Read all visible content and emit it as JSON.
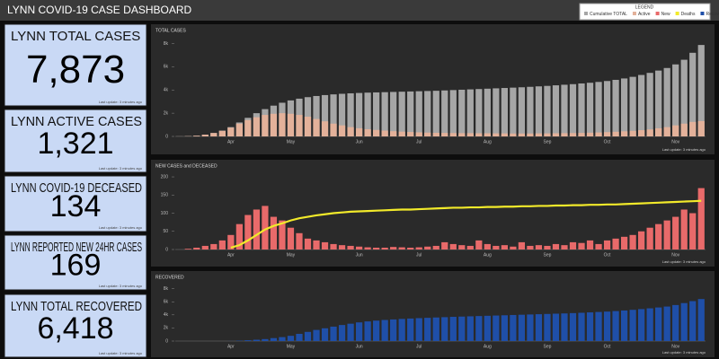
{
  "header": {
    "title": "LYNN COVID-19 CASE DASHBOARD"
  },
  "legend": {
    "title": "LEGEND"
  },
  "cards": [
    {
      "label": "LYNN TOTAL CASES",
      "value": "7,873",
      "note": "Last update: 3 minutes ago"
    },
    {
      "label": "LYNN ACTIVE CASES",
      "value": "1,321",
      "note": "Last update: 3 minutes ago"
    },
    {
      "label": "LYNN COVID-19 DECEASED",
      "value": "134",
      "note": "Last update: 3 minutes ago"
    },
    {
      "label": "LYNN REPORTED NEW 24HR CASES",
      "value": "169",
      "note": "Last update: 3 minutes ago"
    },
    {
      "label": "LYNN TOTAL RECOVERED",
      "value": "6,418",
      "note": "Last update: 3 minutes ago"
    }
  ],
  "chart_data": [
    {
      "type": "bar",
      "title": "TOTAL CASES",
      "note": "Last update: 3 minutes ago",
      "categories": [
        null,
        null,
        null,
        null,
        null,
        null,
        "Apr",
        null,
        null,
        null,
        null,
        null,
        null,
        "May",
        null,
        null,
        null,
        null,
        null,
        null,
        null,
        "Jun",
        null,
        null,
        null,
        null,
        null,
        null,
        "Jul",
        null,
        null,
        null,
        null,
        null,
        null,
        null,
        "Aug",
        null,
        null,
        null,
        null,
        null,
        null,
        "Sep",
        null,
        null,
        null,
        null,
        null,
        null,
        "Oct",
        null,
        null,
        null,
        null,
        null,
        null,
        null,
        "Nov",
        null,
        null,
        null
      ],
      "ylim": [
        0,
        8500
      ],
      "yticks": [
        0,
        {
          "value": 2000,
          "label": "2k"
        },
        {
          "value": 4000,
          "label": "4k"
        },
        {
          "value": 6000,
          "label": "6k"
        },
        {
          "value": 8000,
          "label": "8k"
        }
      ],
      "series": [
        {
          "name": "Cumulative TOTAL",
          "color": "#a6a6a6",
          "values": [
            5,
            20,
            60,
            150,
            300,
            500,
            800,
            1200,
            1600,
            2000,
            2350,
            2650,
            2900,
            3100,
            3250,
            3380,
            3480,
            3560,
            3620,
            3670,
            3710,
            3740,
            3770,
            3790,
            3810,
            3830,
            3850,
            3870,
            3890,
            3910,
            3930,
            3960,
            3990,
            4020,
            4050,
            4080,
            4110,
            4140,
            4170,
            4200,
            4230,
            4270,
            4310,
            4350,
            4400,
            4450,
            4500,
            4560,
            4620,
            4690,
            4770,
            4870,
            4990,
            5130,
            5290,
            5470,
            5670,
            5890,
            6200,
            6600,
            7200,
            7873
          ]
        },
        {
          "name": "Active",
          "color": "#e3b19a",
          "values": [
            5,
            20,
            60,
            150,
            290,
            480,
            760,
            1100,
            1400,
            1650,
            1850,
            1950,
            2000,
            1950,
            1850,
            1700,
            1500,
            1300,
            1100,
            950,
            800,
            700,
            620,
            560,
            500,
            450,
            410,
            380,
            350,
            330,
            310,
            300,
            290,
            280,
            280,
            270,
            270,
            260,
            260,
            250,
            250,
            250,
            260,
            260,
            270,
            280,
            290,
            300,
            320,
            340,
            370,
            400,
            440,
            480,
            540,
            600,
            700,
            800,
            950,
            1100,
            1250,
            1321
          ]
        }
      ]
    },
    {
      "type": "bar",
      "title": "NEW CASES and DECEASED",
      "note": "Last update: 3 minutes ago",
      "categories": [
        null,
        null,
        null,
        null,
        null,
        null,
        "Apr",
        null,
        null,
        null,
        null,
        null,
        null,
        "May",
        null,
        null,
        null,
        null,
        null,
        null,
        null,
        "Jun",
        null,
        null,
        null,
        null,
        null,
        null,
        "Jul",
        null,
        null,
        null,
        null,
        null,
        null,
        null,
        "Aug",
        null,
        null,
        null,
        null,
        null,
        null,
        "Sep",
        null,
        null,
        null,
        null,
        null,
        null,
        "Oct",
        null,
        null,
        null,
        null,
        null,
        null,
        null,
        "Nov",
        null,
        null,
        null
      ],
      "ylim": [
        0,
        210
      ],
      "yticks": [
        0,
        50,
        100,
        150,
        200
      ],
      "series": [
        {
          "name": "New",
          "color": "#e86a6a",
          "values": [
            0,
            2,
            5,
            10,
            15,
            25,
            40,
            70,
            95,
            110,
            120,
            90,
            80,
            60,
            45,
            30,
            25,
            20,
            15,
            12,
            10,
            8,
            6,
            5,
            5,
            7,
            6,
            5,
            6,
            8,
            10,
            20,
            15,
            12,
            10,
            25,
            15,
            10,
            12,
            8,
            20,
            10,
            12,
            10,
            15,
            12,
            20,
            18,
            25,
            15,
            25,
            30,
            35,
            40,
            50,
            60,
            70,
            80,
            90,
            110,
            100,
            169
          ]
        },
        {
          "name": "Deaths",
          "color": "#f2ea2a",
          "type": "line",
          "values": [
            null,
            null,
            null,
            null,
            null,
            null,
            5,
            12,
            25,
            40,
            55,
            65,
            72,
            80,
            86,
            90,
            94,
            97,
            100,
            102,
            104,
            105,
            106,
            107,
            108,
            109,
            110,
            110,
            111,
            112,
            113,
            114,
            115,
            115,
            116,
            116,
            117,
            117,
            118,
            118,
            119,
            119,
            120,
            120,
            121,
            121,
            122,
            122,
            123,
            123,
            124,
            124,
            125,
            126,
            127,
            128,
            129,
            130,
            131,
            132,
            133,
            134
          ]
        }
      ]
    },
    {
      "type": "bar",
      "title": "RECOVERED",
      "note": "Last update: 3 minutes ago",
      "categories": [
        null,
        null,
        null,
        null,
        null,
        null,
        "Apr",
        null,
        null,
        null,
        null,
        null,
        null,
        "May",
        null,
        null,
        null,
        null,
        null,
        null,
        null,
        "Jun",
        null,
        null,
        null,
        null,
        null,
        null,
        "Jul",
        null,
        null,
        null,
        null,
        null,
        null,
        null,
        "Aug",
        null,
        null,
        null,
        null,
        null,
        null,
        "Sep",
        null,
        null,
        null,
        null,
        null,
        null,
        "Oct",
        null,
        null,
        null,
        null,
        null,
        null,
        null,
        "Nov",
        null,
        null,
        null
      ],
      "ylim": [
        0,
        8500
      ],
      "yticks": [
        0,
        {
          "value": 2000,
          "label": "2k"
        },
        {
          "value": 4000,
          "label": "4k"
        },
        {
          "value": 6000,
          "label": "6k"
        },
        {
          "value": 8000,
          "label": "8k"
        }
      ],
      "series": [
        {
          "name": "Recovered",
          "color": "#1f4fa8",
          "values": [
            0,
            0,
            0,
            0,
            0,
            0,
            10,
            50,
            120,
            200,
            300,
            450,
            600,
            800,
            1100,
            1400,
            1700,
            1950,
            2200,
            2450,
            2650,
            2850,
            3000,
            3120,
            3220,
            3300,
            3380,
            3440,
            3500,
            3550,
            3600,
            3650,
            3700,
            3740,
            3780,
            3820,
            3860,
            3900,
            3940,
            3980,
            4020,
            4060,
            4100,
            4140,
            4180,
            4220,
            4270,
            4320,
            4380,
            4440,
            4500,
            4580,
            4670,
            4770,
            4880,
            5000,
            5130,
            5270,
            5500,
            5800,
            6100,
            6418
          ]
        }
      ]
    }
  ]
}
